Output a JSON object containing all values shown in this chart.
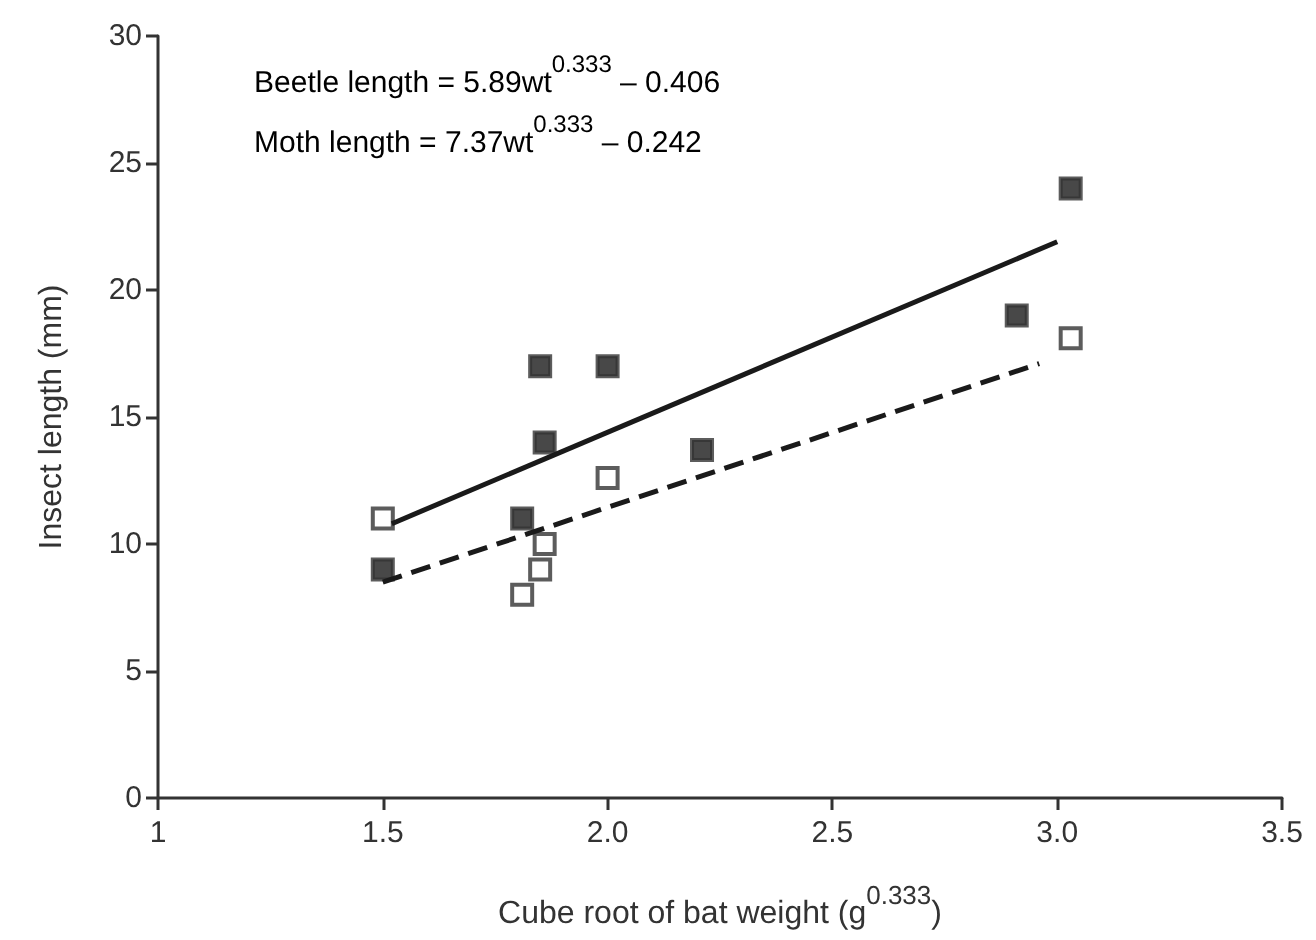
{
  "chart_data": {
    "type": "scatter",
    "xlabel": "Cube root of bat weight (g$^{0.333}$)",
    "ylabel": "Insect length (mm)",
    "annotations": [
      "Beetle length = 5.89wt$^{0.333}$ – 0.406",
      "Moth length = 7.37wt$^{0.333}$ – 0.242"
    ],
    "xlim": [
      1,
      3.5
    ],
    "xticks": [
      1,
      1.5,
      {
        "value": 2,
        "label": "2.0"
      },
      2.5,
      {
        "value": 3,
        "label": "3.0"
      },
      3.5
    ],
    "ylim": [
      0,
      30
    ],
    "yticks": [
      0,
      5,
      10,
      15,
      20,
      25,
      30
    ],
    "grid": false,
    "series": [
      {
        "marker": "square",
        "color": "#1a1a1a",
        "x": [
          1.5,
          1.85,
          1.86,
          1.81,
          2.0,
          2.21,
          2.91,
          3.03
        ],
        "values": [
          9,
          17,
          14,
          11,
          17,
          13.7,
          19,
          24
        ]
      },
      {
        "marker": "square",
        "color": "#ffffff",
        "x": [
          1.5,
          1.81,
          1.85,
          1.86,
          2.0,
          3.03
        ],
        "values": [
          11,
          8,
          9,
          10,
          12.6,
          18.1
        ]
      },
      {
        "type": "line",
        "marker": "none",
        "line_style": "solid",
        "color": "#1a1a1a",
        "x": [
          1.52,
          3.0
        ],
        "values": [
          10.8,
          21.9
        ]
      },
      {
        "type": "line",
        "marker": "none",
        "line_style": "dashed",
        "color": "#1a1a1a",
        "x": [
          1.5,
          2.96
        ],
        "values": [
          8.5,
          17.1
        ]
      }
    ]
  }
}
